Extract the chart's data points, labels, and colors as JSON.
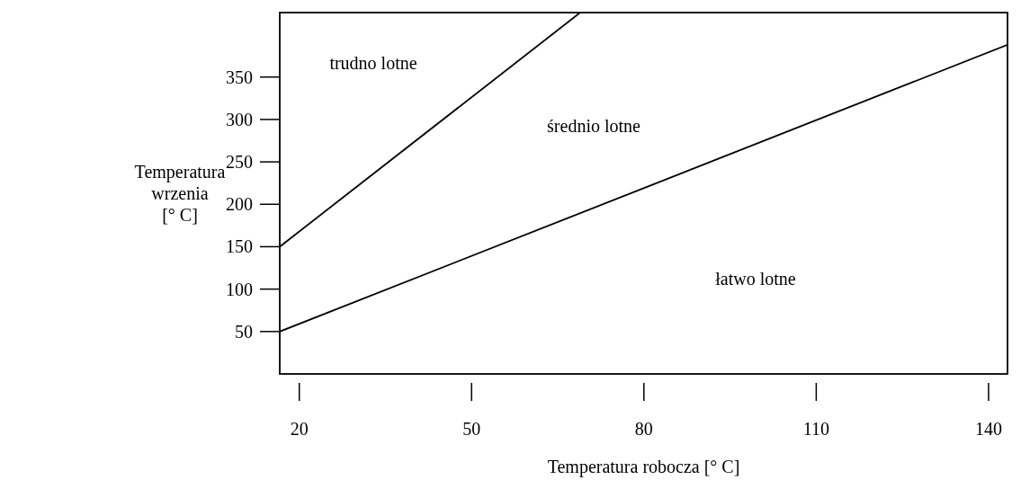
{
  "chart_data": {
    "type": "line",
    "xlabel": "Temperatura robocza [° C]",
    "ylabel": "Temperatura\nwrzenia\n[° C]",
    "xlim": [
      16.6,
      143.3
    ],
    "ylim": [
      0,
      426
    ],
    "xticks": [
      20,
      50,
      80,
      110,
      140
    ],
    "yticks": [
      50,
      100,
      150,
      200,
      250,
      300,
      350
    ],
    "grid": false,
    "marker": "none",
    "line_style": "solid",
    "series": [
      {
        "color": "#000000",
        "x": [
          16.6,
          68.9
        ],
        "values": [
          150,
          426
        ]
      },
      {
        "color": "#000000",
        "x": [
          16.6,
          143.3
        ],
        "values": [
          50,
          388
        ]
      }
    ],
    "annotations": [
      "trudno lotne",
      "średnio lotne",
      "łatwo lotne"
    ]
  }
}
